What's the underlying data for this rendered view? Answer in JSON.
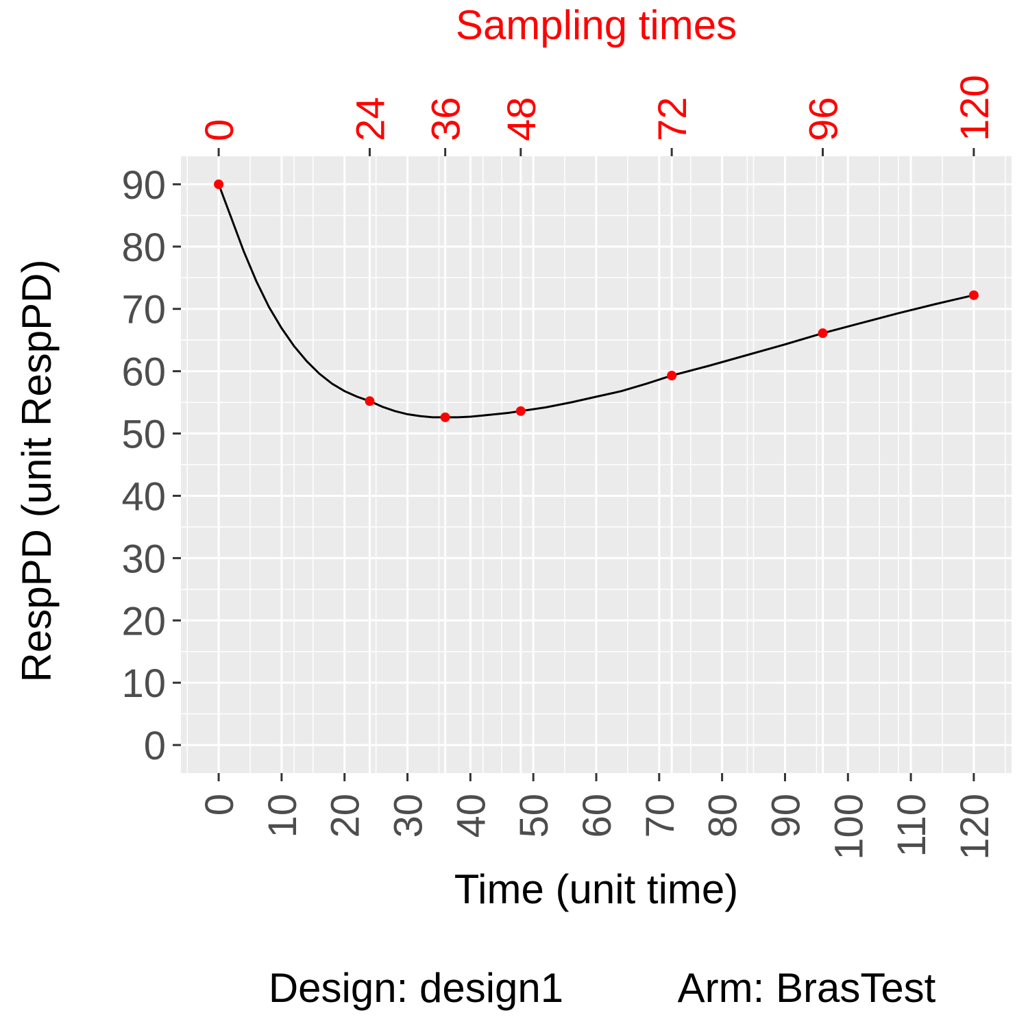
{
  "chart_data": {
    "type": "line",
    "top_axis_title": "Sampling times",
    "xlabel": "Time (unit time)",
    "ylabel": "RespPD (unit RespPD)",
    "caption_design": "Design: design1",
    "caption_arm": "Arm: BrasTest",
    "xlim": [
      -6,
      126
    ],
    "ylim": [
      -4.5,
      94.5
    ],
    "x_ticks": [
      "0",
      "10",
      "20",
      "30",
      "40",
      "50",
      "60",
      "70",
      "80",
      "90",
      "100",
      "110",
      "120"
    ],
    "y_ticks": [
      "0",
      "10",
      "20",
      "30",
      "40",
      "50",
      "60",
      "70",
      "80",
      "90"
    ],
    "top_ticks": [
      "0",
      "24",
      "36",
      "48",
      "72",
      "96",
      "120"
    ],
    "grid": true,
    "series": [
      {
        "points_x": [
          0,
          24,
          36,
          48,
          72,
          96,
          120
        ],
        "points_y": [
          90,
          55.2,
          52.6,
          53.6,
          59.3,
          66.1,
          72.2
        ],
        "curve_x": [
          0,
          2,
          4,
          6,
          8,
          10,
          12,
          14,
          16,
          18,
          20,
          22,
          24,
          26,
          28,
          30,
          32,
          34,
          36,
          38,
          40,
          42,
          44,
          46,
          48,
          52,
          56,
          60,
          64,
          68,
          72,
          78,
          84,
          90,
          96,
          102,
          108,
          114,
          120
        ],
        "curve_y": [
          90,
          84.6,
          79.2,
          74.4,
          70.3,
          66.9,
          64.0,
          61.6,
          59.6,
          58.0,
          56.8,
          55.9,
          55.2,
          54.3,
          53.6,
          53.1,
          52.8,
          52.6,
          52.6,
          52.6,
          52.7,
          52.9,
          53.1,
          53.3,
          53.6,
          54.2,
          55.0,
          55.9,
          56.8,
          58.0,
          59.3,
          60.9,
          62.6,
          64.3,
          66.1,
          67.7,
          69.3,
          70.8,
          72.2
        ],
        "line_color": "#000000",
        "point_color": "#ff0000"
      }
    ],
    "panel_background": "#ebebeb",
    "accent_color": "#ff0000"
  }
}
